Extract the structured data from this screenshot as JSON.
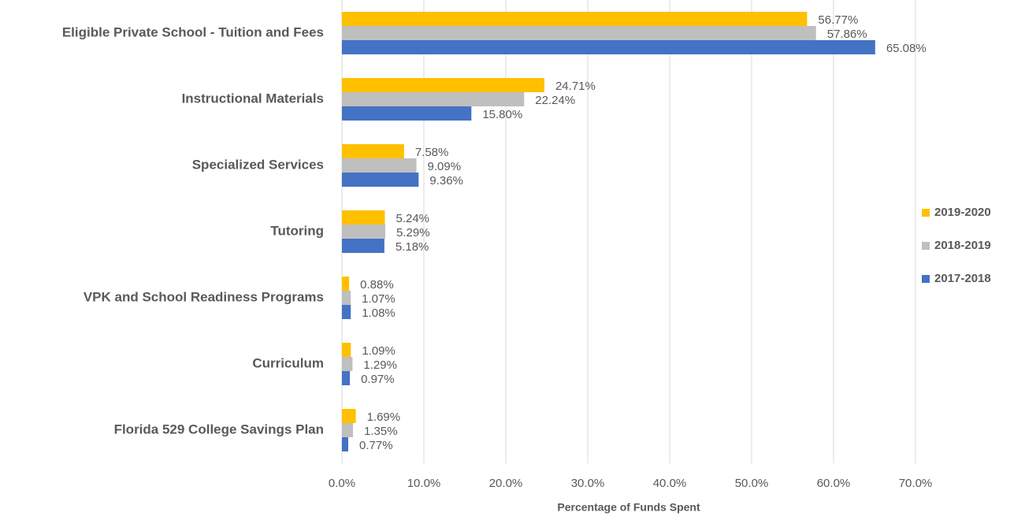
{
  "chart_data": {
    "type": "hbar",
    "xlabel": "Percentage of Funds Spent",
    "categories": [
      "Eligible Private School - Tuition and Fees",
      "Instructional Materials",
      "Specialized Services",
      "Tutoring",
      "VPK and School Readiness Programs",
      "Curriculum",
      "Florida 529 College Savings Plan"
    ],
    "series": [
      {
        "name": "2019-2020",
        "color": "#FFC000",
        "values": [
          56.77,
          24.71,
          7.58,
          5.24,
          0.88,
          1.09,
          1.69
        ],
        "value_labels": [
          "56.77%",
          "24.71%",
          "7.58%",
          "5.24%",
          "0.88%",
          "1.09%",
          "1.69%"
        ]
      },
      {
        "name": "2018-2019",
        "color": "#BFBFBF",
        "values": [
          57.86,
          22.24,
          9.09,
          5.29,
          1.07,
          1.29,
          1.35
        ],
        "value_labels": [
          "57.86%",
          "22.24%",
          "9.09%",
          "5.29%",
          "1.07%",
          "1.29%",
          "1.35%"
        ]
      },
      {
        "name": "2017-2018",
        "color": "#4472C4",
        "values": [
          65.08,
          15.8,
          9.36,
          5.18,
          1.08,
          0.97,
          0.77
        ],
        "value_labels": [
          "65.08%",
          "15.80%",
          "9.36%",
          "5.18%",
          "1.08%",
          "0.97%",
          "0.77%"
        ]
      }
    ],
    "xlim": [
      0,
      70
    ],
    "xticks": [
      {
        "value": 0,
        "label": "0.0%"
      },
      {
        "value": 10,
        "label": "10.0%"
      },
      {
        "value": 20,
        "label": "20.0%"
      },
      {
        "value": 30,
        "label": "30.0%"
      },
      {
        "value": 40,
        "label": "40.0%"
      },
      {
        "value": 50,
        "label": "50.0%"
      },
      {
        "value": 60,
        "label": "60.0%"
      },
      {
        "value": 70,
        "label": "70.0%"
      }
    ],
    "grid": true,
    "legend": "right"
  }
}
